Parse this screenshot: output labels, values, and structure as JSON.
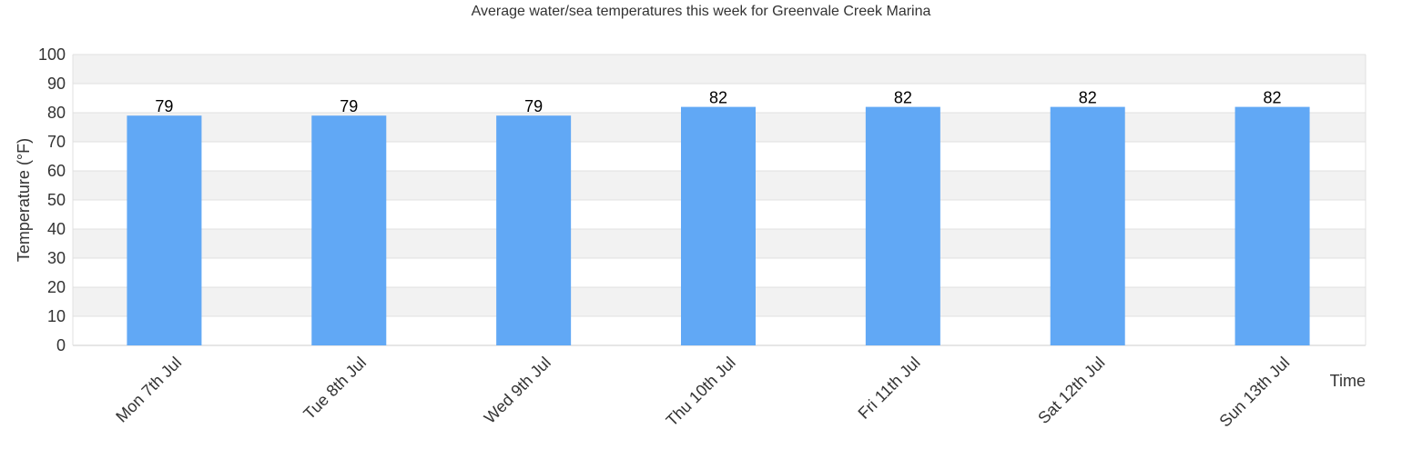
{
  "chart_data": {
    "type": "bar",
    "title": "Average water/sea temperatures this week for Greenvale Creek Marina",
    "xlabel": "Time",
    "ylabel": "Temperature (°F)",
    "categories": [
      "Mon 7th Jul",
      "Tue 8th Jul",
      "Wed 9th Jul",
      "Thu 10th Jul",
      "Fri 11th Jul",
      "Sat 12th Jul",
      "Sun 13th Jul"
    ],
    "values": [
      79,
      79,
      79,
      82,
      82,
      82,
      82
    ],
    "data_labels": [
      "79",
      "79",
      "79",
      "82",
      "82",
      "82",
      "82"
    ],
    "ylim": [
      0,
      100
    ],
    "yticks": [
      0,
      10,
      20,
      30,
      40,
      50,
      60,
      70,
      80,
      90,
      100
    ],
    "ytick_labels": [
      "0",
      "10",
      "20",
      "30",
      "40",
      "50",
      "60",
      "70",
      "80",
      "90",
      "100"
    ],
    "grid": true,
    "legend": "none",
    "colors": {
      "bar": "#61a8f5",
      "band": "#f2f2f2",
      "gridline": "#e0e0e0",
      "axis": "#cccccc",
      "text": "#333333"
    }
  }
}
